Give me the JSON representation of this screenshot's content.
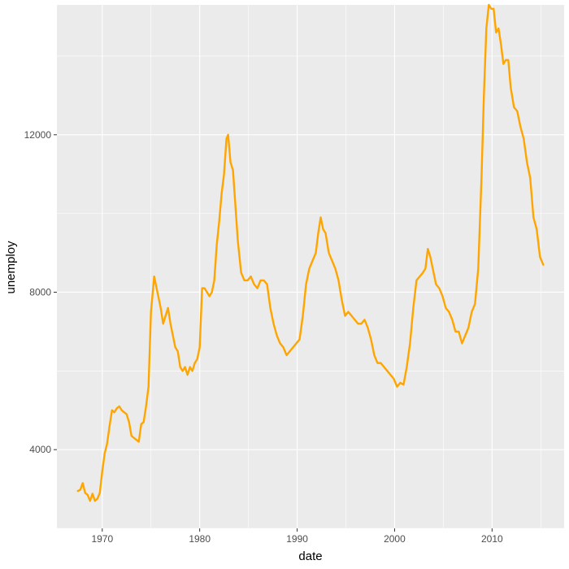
{
  "chart_data": {
    "type": "line",
    "xlabel": "date",
    "ylabel": "unemploy",
    "x_axis": "date",
    "xlim": [
      "1967-07-01",
      "2015-04-01"
    ],
    "ylim": [
      2000,
      15300
    ],
    "x_ticks": [
      1970,
      1980,
      1990,
      2000,
      2010
    ],
    "y_ticks": [
      4000,
      8000,
      12000
    ],
    "grid": true,
    "legend": "none",
    "colors": {
      "line": "#FFA500",
      "panel": "#EBEBEB",
      "grid": "#FFFFFF"
    },
    "series": [
      {
        "x": [
          "1967-07-01",
          "1967-10-01",
          "1968-01-01",
          "1968-04-01",
          "1968-07-01",
          "1968-10-01",
          "1969-01-01",
          "1969-04-01",
          "1969-07-01",
          "1969-10-01",
          "1970-01-01",
          "1970-04-01",
          "1970-07-01",
          "1970-10-01",
          "1971-01-01",
          "1971-04-01",
          "1971-07-01",
          "1971-10-01",
          "1972-01-01",
          "1972-04-01",
          "1972-07-01",
          "1972-10-01",
          "1973-01-01",
          "1973-04-01",
          "1973-07-01",
          "1973-10-01",
          "1974-01-01",
          "1974-04-01",
          "1974-07-01",
          "1974-10-01",
          "1975-01-01",
          "1975-05-01",
          "1975-10-01",
          "1976-01-01",
          "1976-04-01",
          "1976-07-01",
          "1976-10-01",
          "1977-01-01",
          "1977-04-01",
          "1977-07-01",
          "1977-10-01",
          "1978-01-01",
          "1978-04-01",
          "1978-07-01",
          "1978-10-01",
          "1979-01-01",
          "1979-04-01",
          "1979-07-01",
          "1979-10-01",
          "1980-01-01",
          "1980-04-01",
          "1980-07-01",
          "1980-10-01",
          "1981-01-01",
          "1981-04-01",
          "1981-07-01",
          "1981-10-01",
          "1982-01-01",
          "1982-04-01",
          "1982-07-01",
          "1982-10-01",
          "1982-12-01",
          "1983-03-01",
          "1983-06-01",
          "1983-09-01",
          "1983-12-01",
          "1984-04-01",
          "1984-08-01",
          "1984-12-01",
          "1985-04-01",
          "1985-08-01",
          "1985-12-01",
          "1986-04-01",
          "1986-08-01",
          "1986-12-01",
          "1987-04-01",
          "1987-08-01",
          "1987-12-01",
          "1988-04-01",
          "1988-08-01",
          "1988-12-01",
          "1989-04-01",
          "1989-08-01",
          "1989-12-01",
          "1990-04-01",
          "1990-08-01",
          "1990-12-01",
          "1991-04-01",
          "1991-08-01",
          "1991-12-01",
          "1992-03-01",
          "1992-06-01",
          "1992-09-01",
          "1992-12-01",
          "1993-04-01",
          "1993-08-01",
          "1993-12-01",
          "1994-04-01",
          "1994-08-01",
          "1994-12-01",
          "1995-04-01",
          "1995-08-01",
          "1995-12-01",
          "1996-04-01",
          "1996-08-01",
          "1996-12-01",
          "1997-04-01",
          "1997-08-01",
          "1997-12-01",
          "1998-04-01",
          "1998-08-01",
          "1998-12-01",
          "1999-04-01",
          "1999-08-01",
          "1999-12-01",
          "2000-04-01",
          "2000-08-01",
          "2000-12-01",
          "2001-04-01",
          "2001-08-01",
          "2001-12-01",
          "2002-04-01",
          "2002-08-01",
          "2002-12-01",
          "2003-03-01",
          "2003-06-01",
          "2003-09-01",
          "2003-12-01",
          "2004-04-01",
          "2004-08-01",
          "2004-12-01",
          "2005-04-01",
          "2005-08-01",
          "2005-12-01",
          "2006-04-01",
          "2006-08-01",
          "2006-12-01",
          "2007-04-01",
          "2007-08-01",
          "2007-12-01",
          "2008-04-01",
          "2008-08-01",
          "2008-12-01",
          "2009-03-01",
          "2009-06-01",
          "2009-09-01",
          "2009-12-01",
          "2010-03-01",
          "2010-06-01",
          "2010-09-01",
          "2010-12-01",
          "2011-03-01",
          "2011-06-01",
          "2011-09-01",
          "2011-12-01",
          "2012-04-01",
          "2012-08-01",
          "2012-12-01",
          "2013-04-01",
          "2013-08-01",
          "2013-12-01",
          "2014-04-01",
          "2014-08-01",
          "2014-12-01",
          "2015-04-01"
        ],
        "y": [
          2950,
          2980,
          3150,
          2900,
          2850,
          2700,
          2880,
          2700,
          2750,
          2900,
          3450,
          3900,
          4150,
          4600,
          5000,
          4950,
          5050,
          5100,
          5000,
          4950,
          4900,
          4700,
          4350,
          4300,
          4250,
          4200,
          4650,
          4700,
          5100,
          5600,
          7500,
          8400,
          7900,
          7600,
          7200,
          7400,
          7600,
          7200,
          6900,
          6600,
          6500,
          6100,
          6000,
          6100,
          5900,
          6100,
          6000,
          6200,
          6300,
          6600,
          8100,
          8100,
          8000,
          7900,
          8000,
          8300,
          9200,
          9800,
          10500,
          11000,
          11900,
          12000,
          11300,
          11100,
          10200,
          9300,
          8500,
          8300,
          8300,
          8400,
          8200,
          8100,
          8300,
          8300,
          8200,
          7600,
          7200,
          6900,
          6700,
          6600,
          6400,
          6500,
          6600,
          6700,
          6800,
          7400,
          8200,
          8600,
          8800,
          9000,
          9500,
          9900,
          9600,
          9500,
          9000,
          8800,
          8600,
          8300,
          7800,
          7400,
          7500,
          7400,
          7300,
          7200,
          7200,
          7300,
          7100,
          6800,
          6400,
          6200,
          6200,
          6100,
          6000,
          5900,
          5800,
          5600,
          5700,
          5650,
          6100,
          6700,
          7600,
          8300,
          8400,
          8500,
          8600,
          9100,
          8900,
          8600,
          8200,
          8100,
          7900,
          7600,
          7500,
          7300,
          7000,
          7000,
          6700,
          6900,
          7100,
          7500,
          7700,
          8600,
          10900,
          13000,
          14700,
          15300,
          15200,
          15200,
          14600,
          14700,
          14300,
          13800,
          13900,
          13900,
          13200,
          12700,
          12600,
          12200,
          11900,
          11300,
          10900,
          9900,
          9600,
          8900,
          8700
        ]
      }
    ]
  }
}
